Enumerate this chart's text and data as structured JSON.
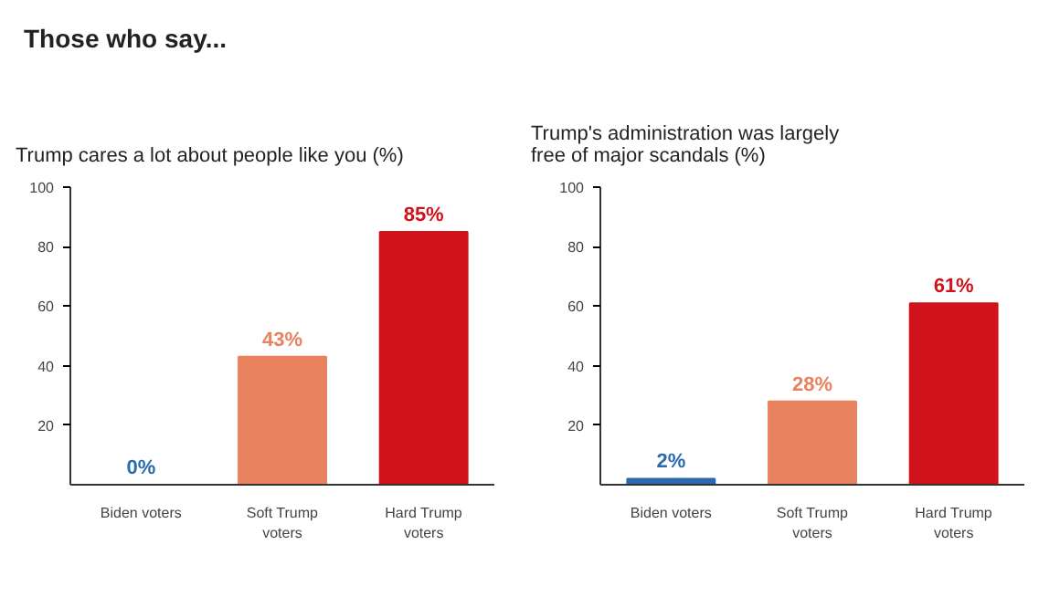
{
  "chart_data": [
    {
      "type": "bar",
      "title": "Those who say...",
      "subtitle": "Trump cares a lot about people like you (%)",
      "categories": [
        "Biden voters",
        "Soft Trump voters",
        "Hard Trump voters"
      ],
      "values": [
        0,
        43,
        85
      ],
      "value_labels": [
        "0%",
        "43%",
        "85%"
      ],
      "colors": [
        "#2a6aad",
        "#e8825f",
        "#d0121b"
      ],
      "ylim": [
        0,
        100
      ],
      "yticks": [
        20,
        40,
        60,
        80,
        100
      ],
      "grid": false
    },
    {
      "type": "bar",
      "subtitle": "Trump's administration was largely\nfree of major scandals (%)",
      "categories": [
        "Biden voters",
        "Soft Trump voters",
        "Hard Trump voters"
      ],
      "values": [
        2,
        28,
        61
      ],
      "value_labels": [
        "2%",
        "28%",
        "61%"
      ],
      "colors": [
        "#2a6aad",
        "#e8825f",
        "#d0121b"
      ],
      "ylim": [
        0,
        100
      ],
      "yticks": [
        20,
        40,
        60,
        80,
        100
      ],
      "grid": false
    }
  ]
}
